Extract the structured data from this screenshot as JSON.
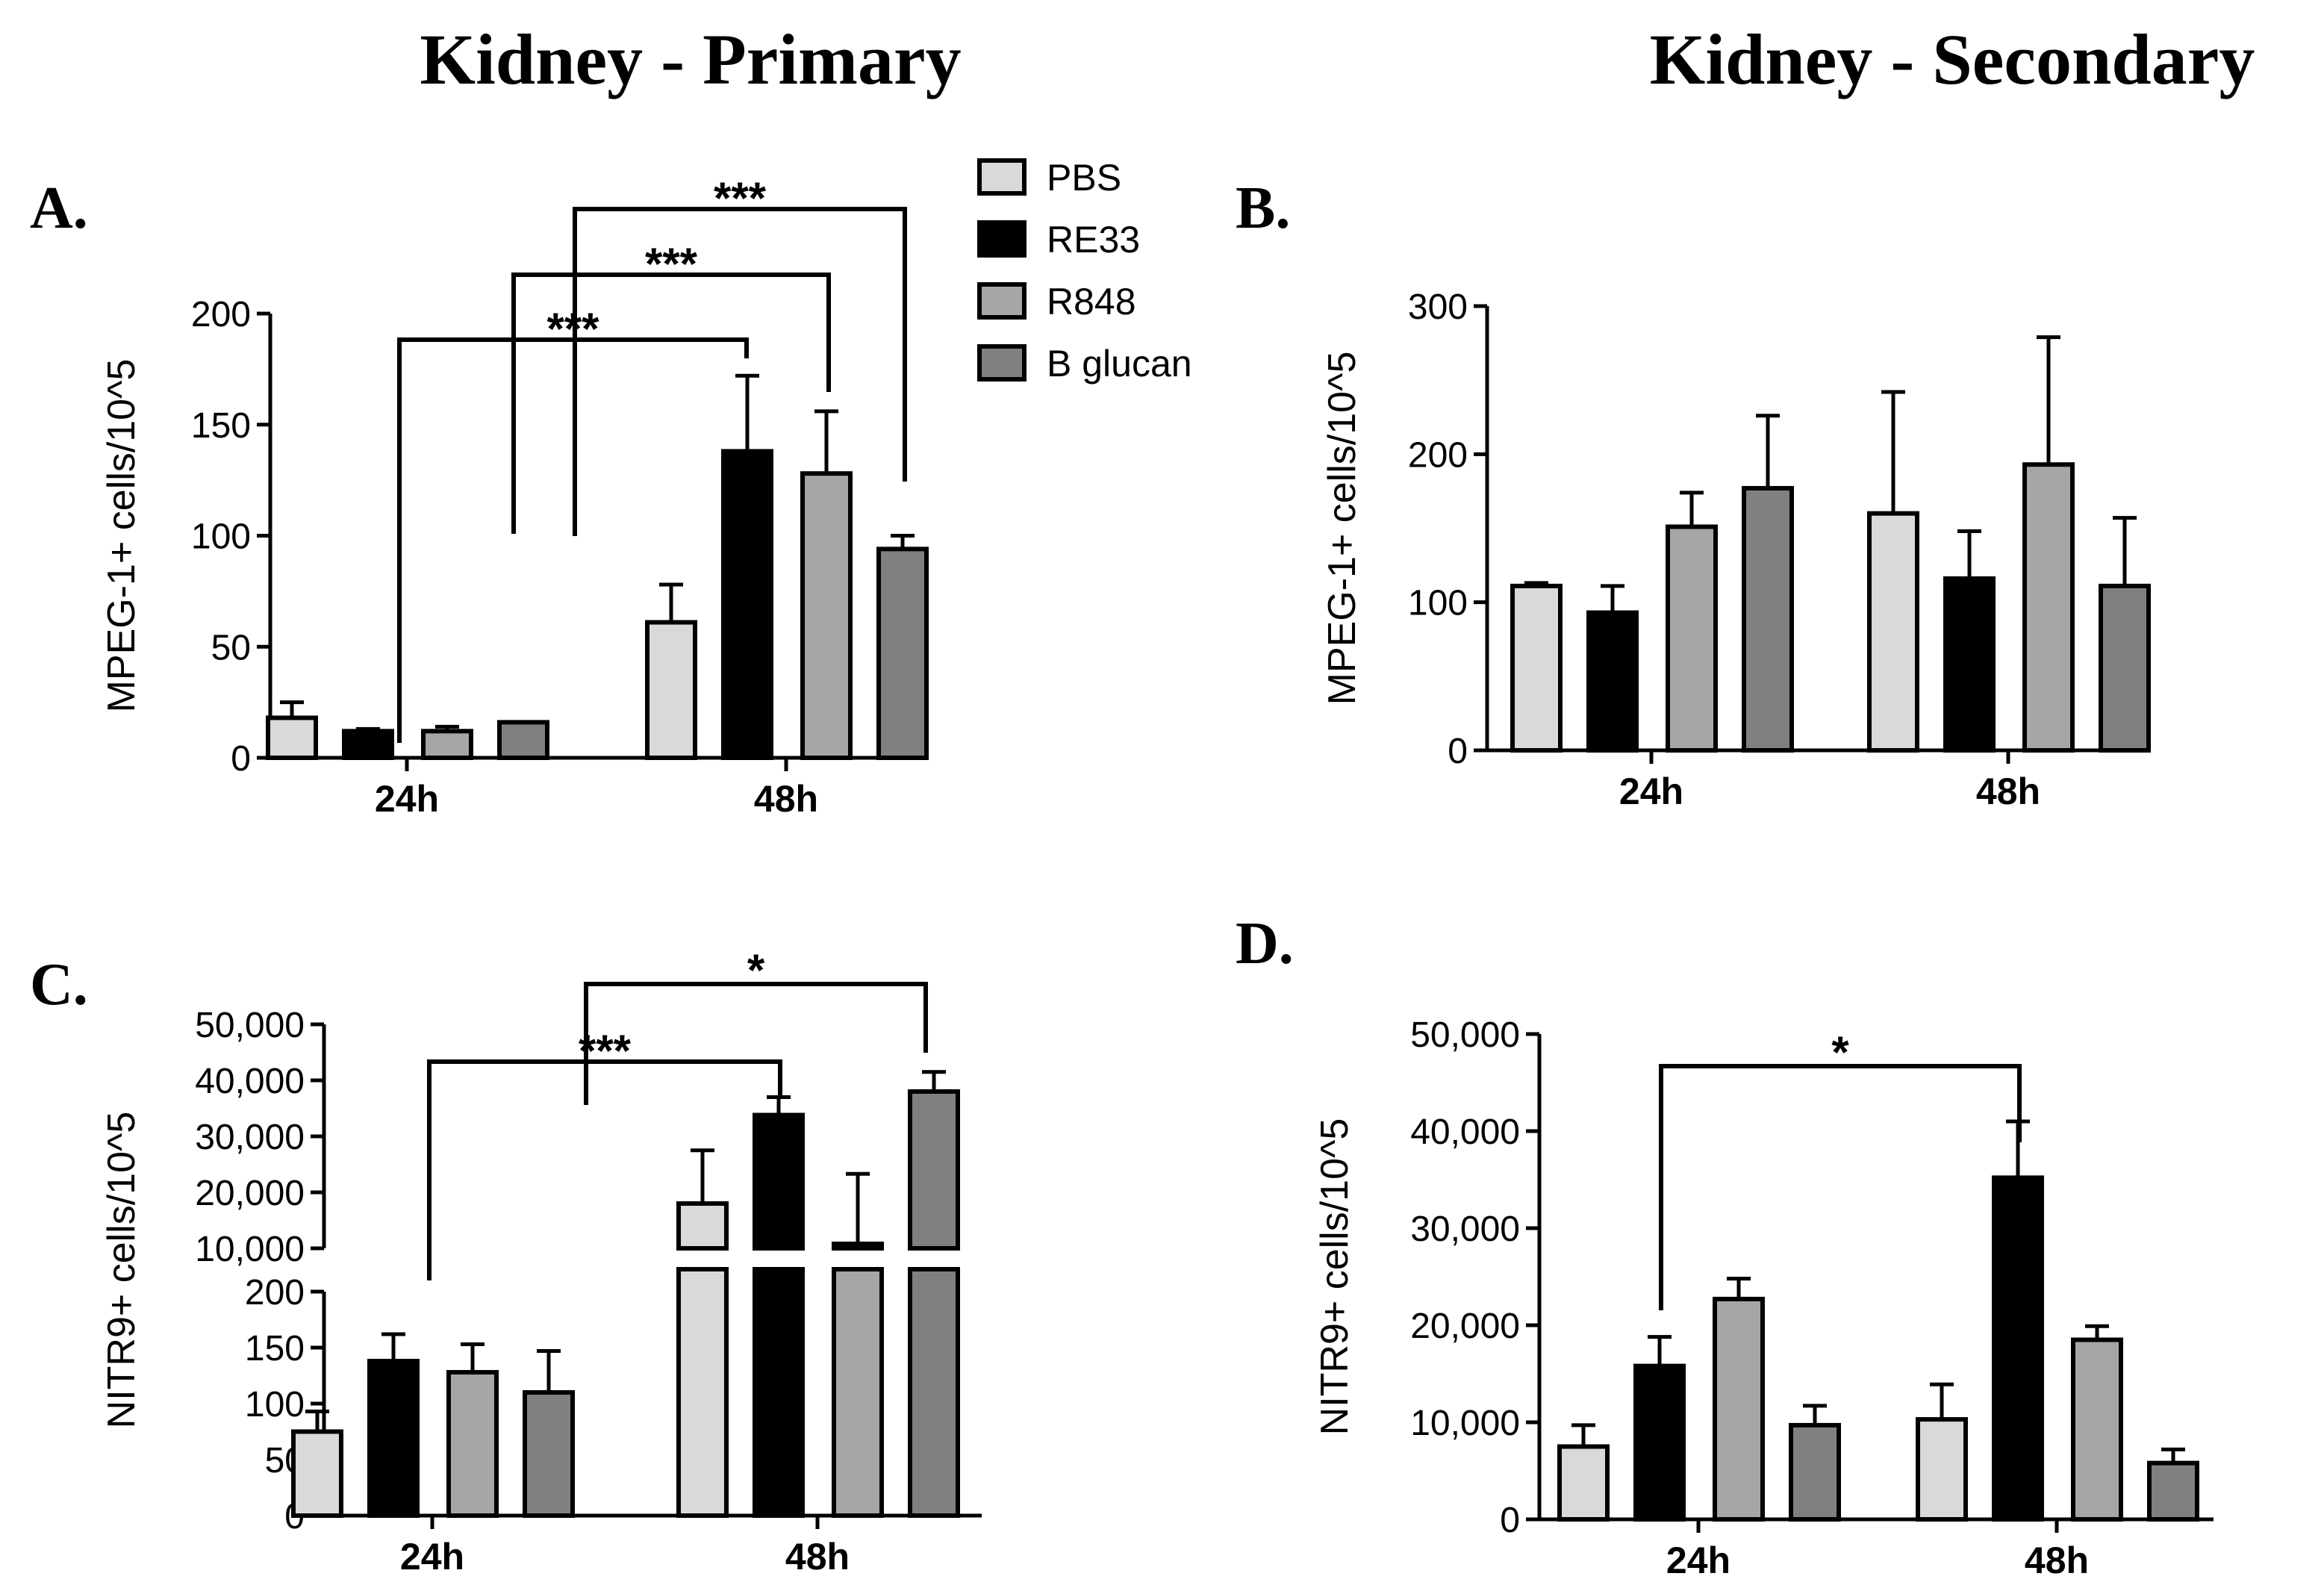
{
  "titles": {
    "left": "Kidney - Primary",
    "right": "Kidney - Secondary"
  },
  "legend": [
    {
      "label": "PBS",
      "color": "#d9d9d9"
    },
    {
      "label": "RE33",
      "color": "#000000"
    },
    {
      "label": "R848",
      "color": "#a6a6a6"
    },
    {
      "label": "B glucan",
      "color": "#808080"
    }
  ],
  "chart_data": [
    {
      "panel": "A.",
      "type": "bar",
      "categories": [
        "24h",
        "48h"
      ],
      "ylabel": "MPEG-1+ cells/10^5",
      "ylim": [
        0,
        200
      ],
      "yticks": [
        "0",
        "50",
        "100",
        "150",
        "200"
      ],
      "yticks_values": [
        0,
        50,
        100,
        150,
        200
      ],
      "series": [
        {
          "name": "PBS",
          "values": [
            18,
            61
          ],
          "errors": [
            7,
            17
          ]
        },
        {
          "name": "RE33",
          "values": [
            12,
            138
          ],
          "errors": [
            1,
            34
          ]
        },
        {
          "name": "R848",
          "values": [
            12,
            128
          ],
          "errors": [
            2,
            28
          ]
        },
        {
          "name": "B glucan",
          "values": [
            16,
            94
          ],
          "errors": [
            0,
            6
          ]
        }
      ],
      "significance": [
        {
          "from": [
            "24h",
            "RE33"
          ],
          "to": [
            "48h",
            "RE33"
          ],
          "label": "***"
        },
        {
          "from": [
            "24h",
            "R848"
          ],
          "to": [
            "48h",
            "R848"
          ],
          "label": "***"
        },
        {
          "from": [
            "24h",
            "B glucan"
          ],
          "to": [
            "48h",
            "B glucan"
          ],
          "label": "***"
        }
      ]
    },
    {
      "panel": "B.",
      "type": "bar",
      "categories": [
        "24h",
        "48h"
      ],
      "ylabel": "MPEG-1+ cells/10^5",
      "ylim": [
        0,
        300
      ],
      "yticks": [
        "0",
        "100",
        "200",
        "300"
      ],
      "yticks_values": [
        0,
        100,
        200,
        300
      ],
      "series": [
        {
          "name": "PBS",
          "values": [
            111,
            160
          ],
          "errors": [
            2,
            82
          ]
        },
        {
          "name": "RE33",
          "values": [
            93,
            116
          ],
          "errors": [
            18,
            32
          ]
        },
        {
          "name": "R848",
          "values": [
            151,
            193
          ],
          "errors": [
            23,
            86
          ]
        },
        {
          "name": "B glucan",
          "values": [
            177,
            111
          ],
          "errors": [
            49,
            46
          ]
        }
      ],
      "significance": []
    },
    {
      "panel": "C.",
      "type": "bar",
      "broken_axis": true,
      "categories": [
        "24h",
        "48h"
      ],
      "ylabel": "NITR9+ cells/10^5",
      "ylim_lower": [
        0,
        200
      ],
      "ylim_upper": [
        10000,
        50000
      ],
      "yticks_lower": [
        "0",
        "50",
        "100",
        "150",
        "200"
      ],
      "yticks_lower_values": [
        0,
        50,
        100,
        150,
        200
      ],
      "yticks_upper": [
        "10,000",
        "20,000",
        "30,000",
        "40,000",
        "50,000"
      ],
      "yticks_upper_values": [
        10000,
        20000,
        30000,
        40000,
        50000
      ],
      "series": [
        {
          "name": "PBS",
          "values": [
            75,
            18000
          ],
          "errors": [
            18,
            9500
          ]
        },
        {
          "name": "RE33",
          "values": [
            138,
            33800
          ],
          "errors": [
            24,
            3200
          ]
        },
        {
          "name": "R848",
          "values": [
            128,
            10800
          ],
          "errors": [
            25,
            12500
          ]
        },
        {
          "name": "B glucan",
          "values": [
            110,
            38000
          ],
          "errors": [
            37,
            3500
          ]
        }
      ],
      "significance": [
        {
          "from": [
            "24h",
            "RE33"
          ],
          "to": [
            "48h",
            "RE33"
          ],
          "label": "***"
        },
        {
          "from": [
            "24h",
            "B glucan"
          ],
          "to": [
            "48h",
            "B glucan"
          ],
          "label": "*"
        }
      ]
    },
    {
      "panel": "D.",
      "type": "bar",
      "categories": [
        "24h",
        "48h"
      ],
      "ylabel": "NITR9+ cells/10^5",
      "ylim": [
        0,
        50000
      ],
      "yticks": [
        "0",
        "10,000",
        "20,000",
        "30,000",
        "40,000",
        "50,000"
      ],
      "yticks_values": [
        0,
        10000,
        20000,
        30000,
        40000,
        50000
      ],
      "series": [
        {
          "name": "PBS",
          "values": [
            7500,
            10300
          ],
          "errors": [
            2200,
            3600
          ]
        },
        {
          "name": "RE33",
          "values": [
            15800,
            35200
          ],
          "errors": [
            3000,
            5800
          ]
        },
        {
          "name": "R848",
          "values": [
            22700,
            18500
          ],
          "errors": [
            2100,
            1400
          ]
        },
        {
          "name": "B glucan",
          "values": [
            9700,
            5800
          ],
          "errors": [
            2000,
            1400
          ]
        }
      ],
      "significance": [
        {
          "from": [
            "24h",
            "RE33"
          ],
          "to": [
            "48h",
            "RE33"
          ],
          "label": "*"
        }
      ]
    }
  ]
}
